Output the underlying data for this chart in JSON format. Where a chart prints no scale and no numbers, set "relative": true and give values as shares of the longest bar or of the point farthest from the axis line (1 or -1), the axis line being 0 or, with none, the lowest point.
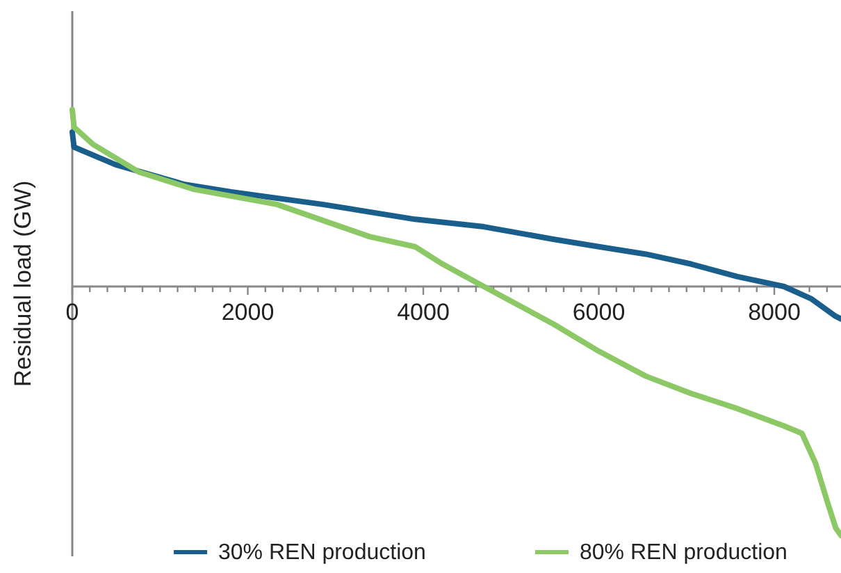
{
  "chart_data": {
    "type": "line",
    "relative": true,
    "ylabel": "Residual load (GW)",
    "xlim": [
      0,
      8760
    ],
    "xticks": [
      0,
      {
        "value": 200,
        "label": null
      },
      {
        "value": 400,
        "label": null
      },
      {
        "value": 600,
        "label": null
      },
      {
        "value": 800,
        "label": null
      },
      {
        "value": 1000,
        "label": null
      },
      {
        "value": 1200,
        "label": null
      },
      {
        "value": 1400,
        "label": null
      },
      {
        "value": 1600,
        "label": null
      },
      {
        "value": 1800,
        "label": null
      },
      2000,
      {
        "value": 2200,
        "label": null
      },
      {
        "value": 2400,
        "label": null
      },
      {
        "value": 2600,
        "label": null
      },
      {
        "value": 2800,
        "label": null
      },
      {
        "value": 3000,
        "label": null
      },
      {
        "value": 3200,
        "label": null
      },
      {
        "value": 3400,
        "label": null
      },
      {
        "value": 3600,
        "label": null
      },
      {
        "value": 3800,
        "label": null
      },
      4000,
      {
        "value": 4200,
        "label": null
      },
      {
        "value": 4400,
        "label": null
      },
      {
        "value": 4600,
        "label": null
      },
      {
        "value": 4800,
        "label": null
      },
      {
        "value": 5000,
        "label": null
      },
      {
        "value": 5200,
        "label": null
      },
      {
        "value": 5400,
        "label": null
      },
      {
        "value": 5600,
        "label": null
      },
      {
        "value": 5800,
        "label": null
      },
      6000,
      {
        "value": 6200,
        "label": null
      },
      {
        "value": 6400,
        "label": null
      },
      {
        "value": 6600,
        "label": null
      },
      {
        "value": 6800,
        "label": null
      },
      {
        "value": 7000,
        "label": null
      },
      {
        "value": 7200,
        "label": null
      },
      {
        "value": 7400,
        "label": null
      },
      {
        "value": 7600,
        "label": null
      },
      {
        "value": 7800,
        "label": null
      },
      8000,
      {
        "value": 8200,
        "label": null
      },
      {
        "value": 8400,
        "label": null
      },
      {
        "value": 8600,
        "label": null
      }
    ],
    "legend": "bottom",
    "grid": false,
    "marker": "none",
    "line_style": "solid",
    "series": [
      {
        "name": "30% REN production",
        "color": "#1a5e8c",
        "x": [
          0,
          20,
          490,
          1280,
          1810,
          2850,
          3905,
          4690,
          5480,
          6000,
          6535,
          7055,
          7575,
          8110,
          8425,
          8700,
          8760
        ],
        "values": [
          0.62,
          0.56,
          0.49,
          0.41,
          0.38,
          0.33,
          0.27,
          0.24,
          0.19,
          0.16,
          0.13,
          0.09,
          0.04,
          0,
          -0.05,
          -0.12,
          -0.13
        ]
      },
      {
        "name": "80% REN production",
        "color": "#8cc866",
        "x": [
          0,
          20,
          240,
          760,
          1390,
          2330,
          3390,
          3905,
          4220,
          4690,
          5480,
          6000,
          6535,
          7055,
          7575,
          8110,
          8315,
          8470,
          8600,
          8700,
          8760
        ],
        "values": [
          0.71,
          0.64,
          0.57,
          0.46,
          0.39,
          0.33,
          0.2,
          0.16,
          0.09,
          0,
          -0.15,
          -0.26,
          -0.36,
          -0.43,
          -0.49,
          -0.56,
          -0.59,
          -0.71,
          -0.86,
          -0.97,
          -1
        ]
      }
    ]
  }
}
